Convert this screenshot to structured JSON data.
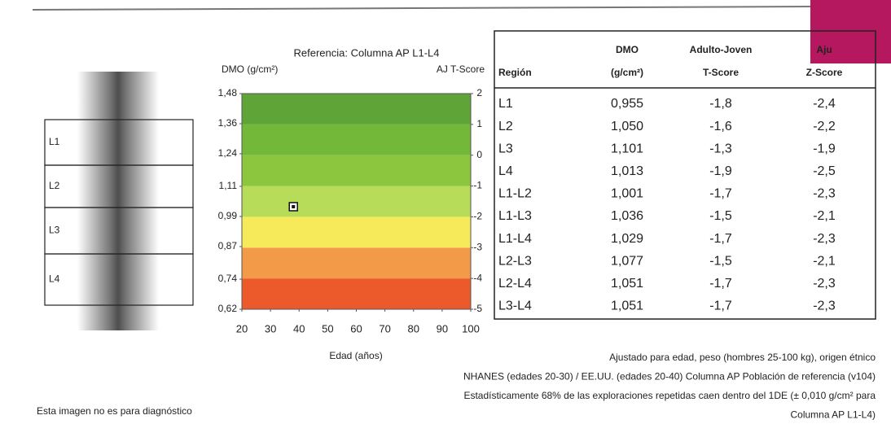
{
  "chart_data": {
    "type": "scatter",
    "title": "Referencia: Columna AP L1-L4",
    "y_label": "DMO (g/cm²)",
    "y2_label": "AJ T-Score",
    "x_label": "Edad (años)",
    "x": [
      38
    ],
    "values": [
      1.029
    ],
    "color": "#111111",
    "xlim": [
      20,
      100
    ],
    "xticks": [
      20,
      30,
      40,
      50,
      60,
      70,
      80,
      90,
      100
    ],
    "ylim": [
      0.62,
      1.48
    ],
    "yticks": [
      {
        "value": 0.62,
        "label": "0,62"
      },
      {
        "value": 0.74,
        "label": "0,74"
      },
      {
        "value": 0.87,
        "label": "0,87"
      },
      {
        "value": 0.99,
        "label": "0,99"
      },
      {
        "value": 1.11,
        "label": "1,11"
      },
      {
        "value": 1.24,
        "label": "1,24"
      },
      {
        "value": 1.36,
        "label": "1,36"
      },
      {
        "value": 1.48,
        "label": "1,48"
      }
    ],
    "y2lim": [
      -5,
      2
    ],
    "y2ticks": [
      -5,
      -4,
      -3,
      -2,
      -1,
      0,
      1,
      2
    ],
    "band_colors": [
      "#ec5a2c",
      "#f39a48",
      "#f7ea5a",
      "#b6dc5a",
      "#8cc63f",
      "#74b83a",
      "#5ea437"
    ]
  },
  "spine_labels": [
    "L1",
    "L2",
    "L3",
    "L4"
  ],
  "table": {
    "header_top": [
      "DMO",
      "Adulto-Joven",
      "Aju"
    ],
    "header_bottom": [
      "Región",
      "(g/cm²)",
      "T-Score",
      "Z-Score"
    ],
    "rows": [
      [
        "L1",
        "0,955",
        "-1,8",
        "-2,4"
      ],
      [
        "L2",
        "1,050",
        "-1,6",
        "-2,2"
      ],
      [
        "L3",
        "1,101",
        "-1,3",
        "-1,9"
      ],
      [
        "L4",
        "1,013",
        "-1,9",
        "-2,5"
      ],
      [
        "L1-L2",
        "1,001",
        "-1,7",
        "-2,3"
      ],
      [
        "L1-L3",
        "1,036",
        "-1,5",
        "-2,1"
      ],
      [
        "L1-L4",
        "1,029",
        "-1,7",
        "-2,3"
      ],
      [
        "L2-L3",
        "1,077",
        "-1,5",
        "-2,1"
      ],
      [
        "L2-L4",
        "1,051",
        "-1,7",
        "-2,3"
      ],
      [
        "L3-L4",
        "1,051",
        "-1,7",
        "-2,3"
      ]
    ]
  },
  "notes": [
    "Ajustado para edad, peso (hombres 25-100 kg), origen étnico",
    "NHANES (edades 20-30) / EE.UU. (edades 20-40) Columna AP Población de referencia (v104)",
    "Estadísticamente 68% de las exploraciones repetidas caen dentro del  1DE (± 0,010 g/cm² para",
    "Columna AP L1-L4)"
  ],
  "disclaimer": "Esta imagen no es para diagnóstico"
}
